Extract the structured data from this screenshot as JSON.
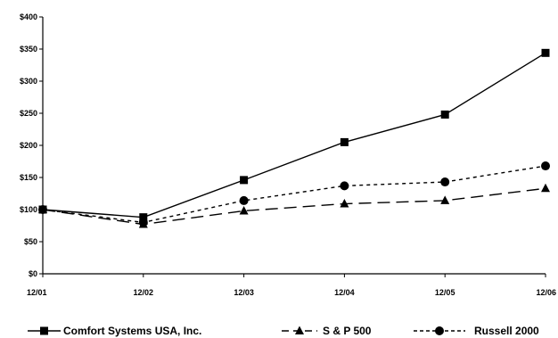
{
  "chart_data": {
    "type": "line",
    "title": "",
    "xlabel": "",
    "ylabel": "",
    "categories": [
      "12/01",
      "12/02",
      "12/03",
      "12/04",
      "12/05",
      "12/06"
    ],
    "ylim": [
      0,
      400
    ],
    "yticks": [
      "$0",
      "$50",
      "$100",
      "$150",
      "$200",
      "$250",
      "$300",
      "$350",
      "$400"
    ],
    "ytick_values": [
      0,
      50,
      100,
      150,
      200,
      250,
      300,
      350,
      400
    ],
    "grid": false,
    "legend_position": "bottom",
    "series": [
      {
        "name": "Comfort Systems USA, Inc.",
        "values": [
          100,
          88,
          146,
          205,
          248,
          344
        ],
        "marker": "square",
        "line": "solid",
        "color": "#000000"
      },
      {
        "name": "S & P 500",
        "values": [
          100,
          77,
          98,
          109,
          114,
          133
        ],
        "marker": "triangle",
        "line": "dashed",
        "color": "#000000"
      },
      {
        "name": "Russell 2000",
        "values": [
          100,
          80,
          114,
          137,
          143,
          168
        ],
        "marker": "circle",
        "line": "dotted",
        "color": "#000000"
      }
    ]
  }
}
